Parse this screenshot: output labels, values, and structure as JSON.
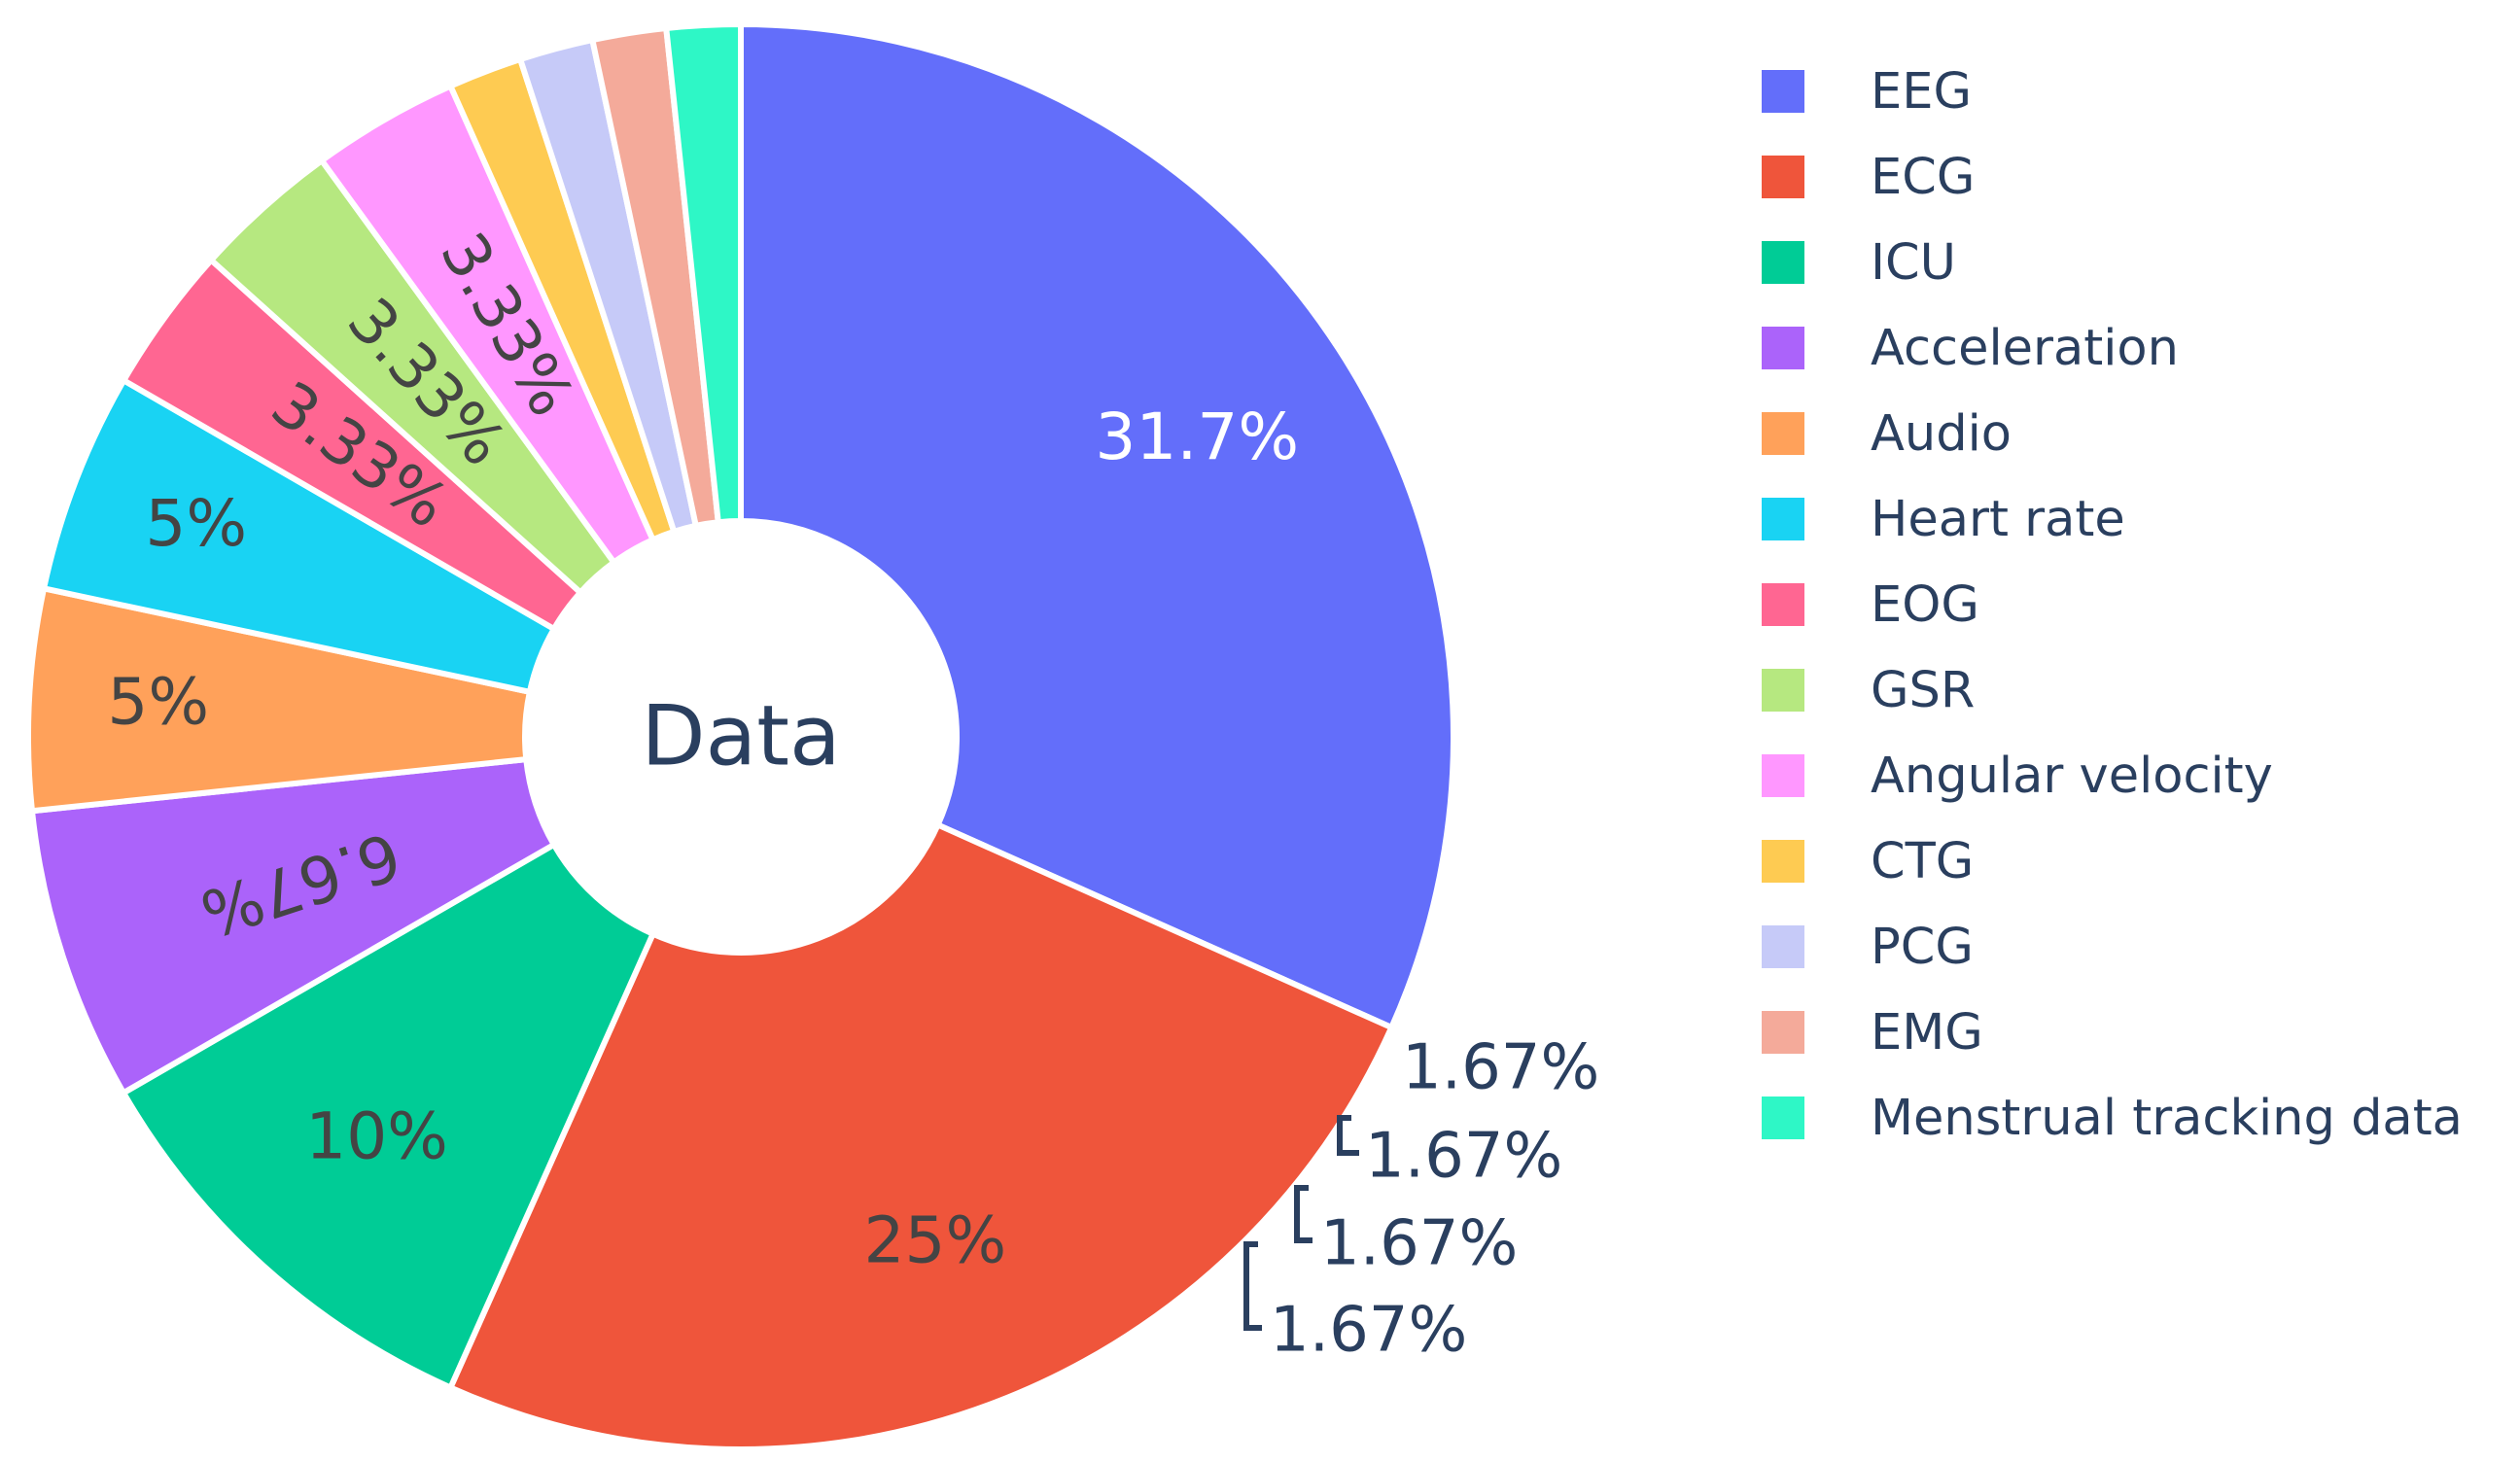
{
  "chart_data": {
    "type": "pie",
    "hole_label": "Data",
    "labels": [
      "EEG",
      "ECG",
      "ICU",
      "Acceleration",
      "Audio",
      "Heart rate",
      "EOG",
      "GSR",
      "Angular velocity",
      "CTG",
      "PCG",
      "EMG",
      "Menstrual tracking data"
    ],
    "values": [
      31.7,
      25,
      10,
      6.67,
      5,
      5,
      3.33,
      3.33,
      3.33,
      1.67,
      1.67,
      1.67,
      1.67
    ],
    "slice_labels": [
      "31.7%",
      "25%",
      "10%",
      "6.67%",
      "5%",
      "5%",
      "3.33%",
      "3.33%",
      "3.33%",
      "1.67%",
      "1.67%",
      "1.67%",
      "1.67%"
    ],
    "colors": [
      "#636efa",
      "#ef553b",
      "#00cc96",
      "#ab63fa",
      "#ffa15a",
      "#19d3f3",
      "#ff6692",
      "#b6e880",
      "#ff97ff",
      "#fecb52",
      "#c6caf8",
      "#f4aa9a",
      "#2ef7c6"
    ],
    "label_colors": [
      "#ffffff",
      "#444444",
      "#444444",
      "#444444",
      "#444444",
      "#444444",
      "#444444",
      "#444444",
      "#444444",
      "#2a3f5f",
      "#2a3f5f",
      "#2a3f5f",
      "#2a3f5f"
    ],
    "legend_position": "right"
  }
}
